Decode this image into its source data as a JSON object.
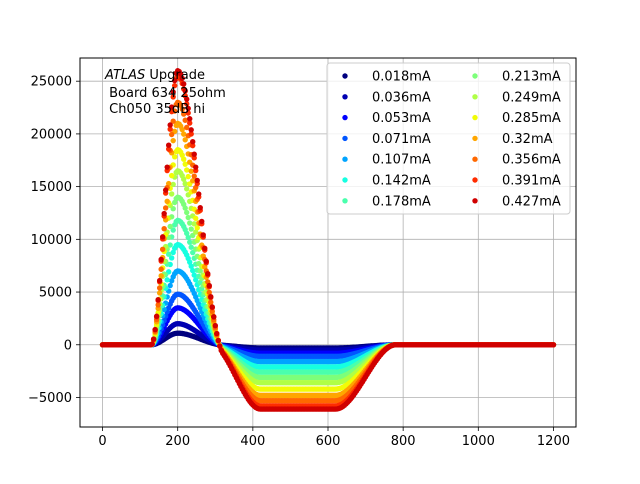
{
  "chart_data": {
    "type": "scatter",
    "title": "",
    "xlabel": "",
    "ylabel": "",
    "xlim": [
      -60,
      1260
    ],
    "ylim": [
      -7800,
      27200
    ],
    "grid": true,
    "legend_position": "top-right",
    "legend_columns": 2,
    "x_ticks": [
      0,
      200,
      400,
      600,
      800,
      1000,
      1200
    ],
    "x_tick_labels": [
      "0",
      "200",
      "400",
      "600",
      "800",
      "1000",
      "1200"
    ],
    "y_ticks": [
      -5000,
      0,
      5000,
      10000,
      15000,
      20000,
      25000
    ],
    "y_tick_labels": [
      "−5000",
      "0",
      "5000",
      "10000",
      "15000",
      "20000",
      "25000"
    ],
    "annotation": {
      "line1_italic": "ATLAS",
      "line1_rest": " Upgrade",
      "line2": " Board 634 25ohm",
      "line3": " Ch050 35dB hi"
    },
    "pulse_shape": {
      "x_step": 4,
      "rise_start": 130,
      "rise_end": 200,
      "fall_end": 320,
      "undershoot_start": 290,
      "undershoot_end": 800,
      "undershoot_rise_start": 620,
      "undershoot_rise_end": 780,
      "top_plateau_ms_clip": 26000
    },
    "series": [
      {
        "name": "0.018mA",
        "color": "#00007f",
        "peak": 1100,
        "undershoot": -300
      },
      {
        "name": "0.036mA",
        "color": "#0000b2",
        "peak": 2000,
        "undershoot": -500
      },
      {
        "name": "0.053mA",
        "color": "#0000ff",
        "peak": 3500,
        "undershoot": -800
      },
      {
        "name": "0.071mA",
        "color": "#0055ff",
        "peak": 4800,
        "undershoot": -1100
      },
      {
        "name": "0.107mA",
        "color": "#00a4ff",
        "peak": 7000,
        "undershoot": -1600
      },
      {
        "name": "0.142mA",
        "color": "#16ffe1",
        "peak": 9500,
        "undershoot": -2100
      },
      {
        "name": "0.178mA",
        "color": "#4affad",
        "peak": 11800,
        "undershoot": -2600
      },
      {
        "name": "0.213mA",
        "color": "#7dff7a",
        "peak": 14000,
        "undershoot": -3100
      },
      {
        "name": "0.249mA",
        "color": "#b0ff46",
        "peak": 16500,
        "undershoot": -3600
      },
      {
        "name": "0.285mA",
        "color": "#f1fc06",
        "peak": 18500,
        "undershoot": -4200
      },
      {
        "name": "0.32mA",
        "color": "#ffa600",
        "peak": 21000,
        "undershoot": -4800
      },
      {
        "name": "0.356mA",
        "color": "#ff6800",
        "peak": 23000,
        "undershoot": -5300
      },
      {
        "name": "0.391mA",
        "color": "#ff2c00",
        "peak": 25500,
        "undershoot": -5800
      },
      {
        "name": "0.427mA",
        "color": "#d00000",
        "peak": 26000,
        "undershoot": -6100
      }
    ]
  }
}
